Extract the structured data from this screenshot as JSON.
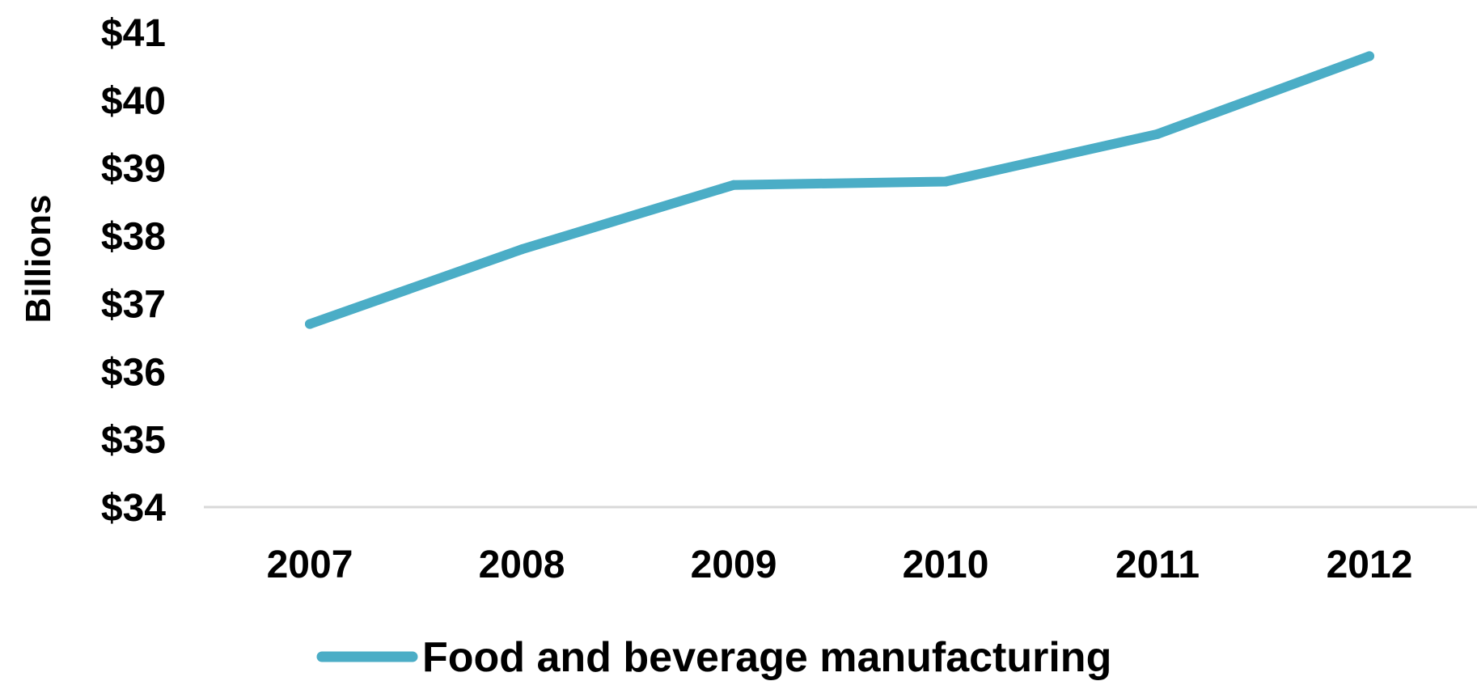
{
  "chart_data": {
    "type": "line",
    "ylabel": "Billions",
    "xlabel": "",
    "categories": [
      "2007",
      "2008",
      "2009",
      "2010",
      "2011",
      "2012"
    ],
    "y_ticks": [
      "$34",
      "$35",
      "$36",
      "$37",
      "$38",
      "$39",
      "$40",
      "$41"
    ],
    "ylim": [
      34,
      41
    ],
    "grid": false,
    "legend_position": "bottom",
    "series": [
      {
        "name": "Food and beverage manufacturing",
        "color": "#4badc6",
        "values": [
          36.7,
          37.8,
          38.75,
          38.8,
          39.5,
          40.65
        ]
      }
    ]
  }
}
